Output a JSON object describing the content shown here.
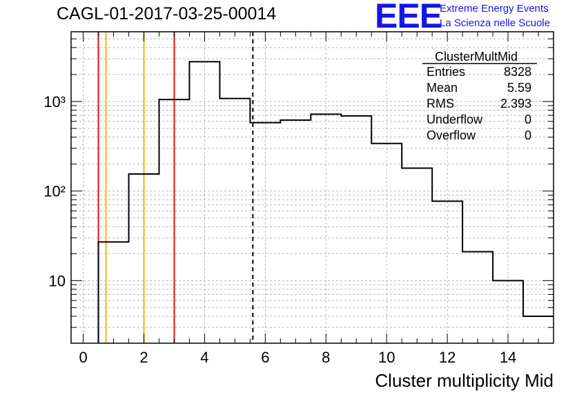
{
  "header": {
    "title": "CAGL-01-2017-03-25-00014",
    "logo_text": "EEE",
    "logo_line1": "Extreme Energy Events",
    "logo_line2": "La Scienza nelle Scuole",
    "logo_color": "#1515e6"
  },
  "stats": {
    "title": "ClusterMultMid",
    "rows": [
      {
        "label": "Entries",
        "value": "8328"
      },
      {
        "label": "Mean",
        "value": "5.59"
      },
      {
        "label": "RMS",
        "value": "2.393"
      },
      {
        "label": "Underflow",
        "value": "0"
      },
      {
        "label": "Overflow",
        "value": "0"
      }
    ]
  },
  "chart_data": {
    "type": "histogram",
    "xlabel": "Cluster multiplicity Mid",
    "ylabel": "",
    "xlim": [
      -0.4,
      15.5
    ],
    "ylim": [
      2,
      6000
    ],
    "yscale": "log",
    "grid": true,
    "x_ticks": [
      0,
      2,
      4,
      6,
      8,
      10,
      12,
      14
    ],
    "y_tick_labels": [
      {
        "value": 10,
        "label": "10"
      },
      {
        "value": 100,
        "label": "10²"
      },
      {
        "value": 1000,
        "label": "10³"
      }
    ],
    "bin_edges": [
      0.5,
      1.5,
      2.5,
      3.5,
      4.5,
      5.5,
      6.5,
      7.5,
      8.5,
      9.5,
      10.5,
      11.5,
      12.5,
      13.5,
      14.5,
      15.5
    ],
    "counts": [
      27,
      155,
      1050,
      2780,
      1080,
      580,
      620,
      720,
      690,
      340,
      180,
      77,
      21,
      10,
      4
    ],
    "vertical_lines": [
      {
        "x": 0.5,
        "color": "#e01010",
        "style": "solid"
      },
      {
        "x": 0.75,
        "color": "#ffb000",
        "style": "solid"
      },
      {
        "x": 2.0,
        "color": "#ffb000",
        "style": "solid"
      },
      {
        "x": 3.0,
        "color": "#e01010",
        "style": "solid"
      },
      {
        "x": 5.59,
        "color": "#000000",
        "style": "dashed"
      }
    ]
  }
}
